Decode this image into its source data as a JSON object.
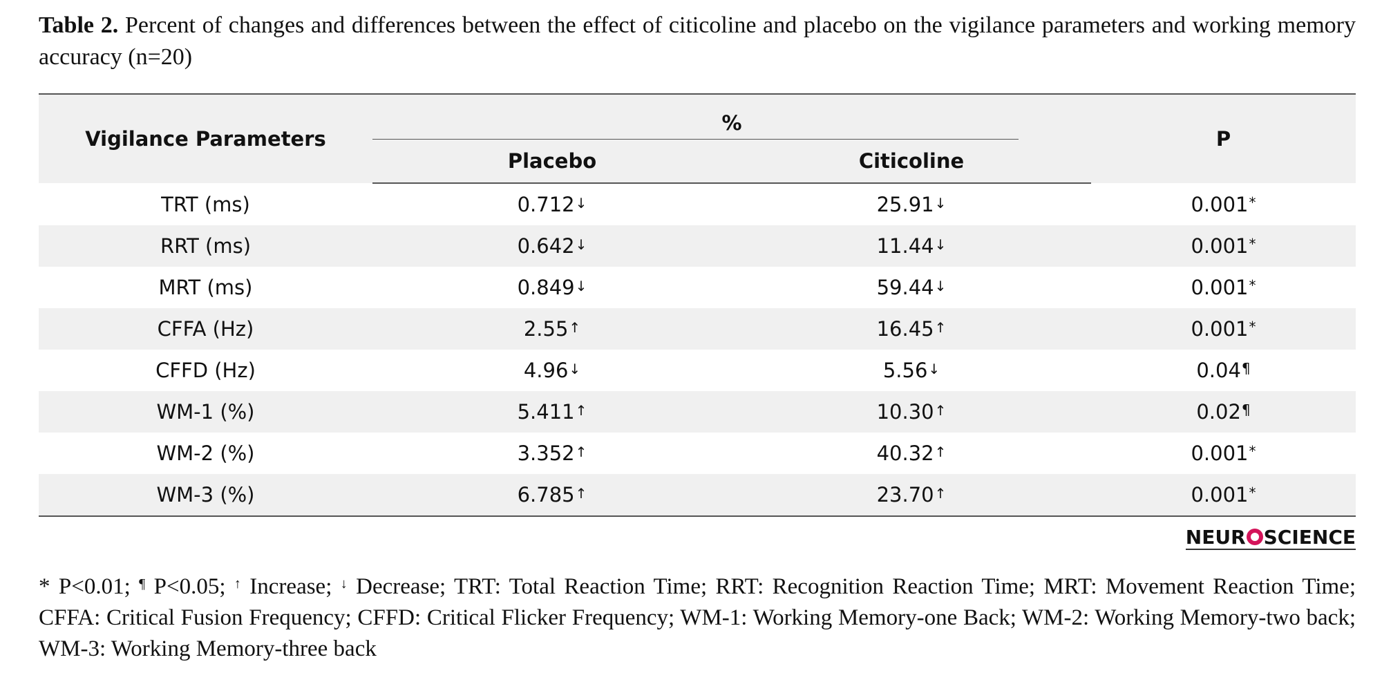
{
  "caption": {
    "label": "Table 2.",
    "text": " Percent of changes and differences between the effect of citicoline and placebo on the vigilance parameters and working memory accuracy (n=20)"
  },
  "table": {
    "headers": {
      "parameter": "Vigilance Parameters",
      "group": "%",
      "placebo": "Placebo",
      "citicoline": "Citicoline",
      "p": "P"
    },
    "rows": [
      {
        "param": "TRT (ms)",
        "placebo": "0.712",
        "placebo_dir": "↓",
        "citicoline": "25.91",
        "citicoline_dir": "↓",
        "p": "0.001",
        "p_mark": "*"
      },
      {
        "param": "RRT (ms)",
        "placebo": "0.642",
        "placebo_dir": "↓",
        "citicoline": "11.44",
        "citicoline_dir": "↓",
        "p": "0.001",
        "p_mark": "*"
      },
      {
        "param": "MRT (ms)",
        "placebo": "0.849",
        "placebo_dir": "↓",
        "citicoline": "59.44",
        "citicoline_dir": "↓",
        "p": "0.001",
        "p_mark": "*"
      },
      {
        "param": "CFFA (Hz)",
        "placebo": "2.55",
        "placebo_dir": "↑",
        "citicoline": "16.45",
        "citicoline_dir": "↑",
        "p": "0.001",
        "p_mark": "*"
      },
      {
        "param": "CFFD (Hz)",
        "placebo": "4.96",
        "placebo_dir": "↓",
        "citicoline": "5.56",
        "citicoline_dir": "↓",
        "p": "0.04",
        "p_mark": "¶"
      },
      {
        "param": "WM-1 (%)",
        "placebo": "5.411",
        "placebo_dir": "↑",
        "citicoline": "10.30",
        "citicoline_dir": "↑",
        "p": "0.02",
        "p_mark": "¶"
      },
      {
        "param": "WM-2 (%)",
        "placebo": "3.352",
        "placebo_dir": "↑",
        "citicoline": "40.32",
        "citicoline_dir": "↑",
        "p": "0.001",
        "p_mark": "*"
      },
      {
        "param": "WM-3 (%)",
        "placebo": "6.785",
        "placebo_dir": "↑",
        "citicoline": "23.70",
        "citicoline_dir": "↑",
        "p": "0.001",
        "p_mark": "*"
      }
    ]
  },
  "logo": {
    "text_left": "NEUR",
    "text_right": "SCIENCE"
  },
  "footnote": {
    "star": "* P<0.01; ",
    "para_sym": "¶",
    "para_text": " P<0.05; ",
    "up_sym": "↑",
    "up_text": " Increase; ",
    "down_sym": "↓",
    "rest": " Decrease; TRT: Total Reaction Time; RRT: Recognition Reaction Time; MRT: Movement Reaction Time; CFFA: Critical Fusion Frequency; CFFD: Critical Flicker Frequency; WM-1: Working Memory-one Back; WM-2: Working Memory-two back; WM-3: Working Memory-three back"
  }
}
